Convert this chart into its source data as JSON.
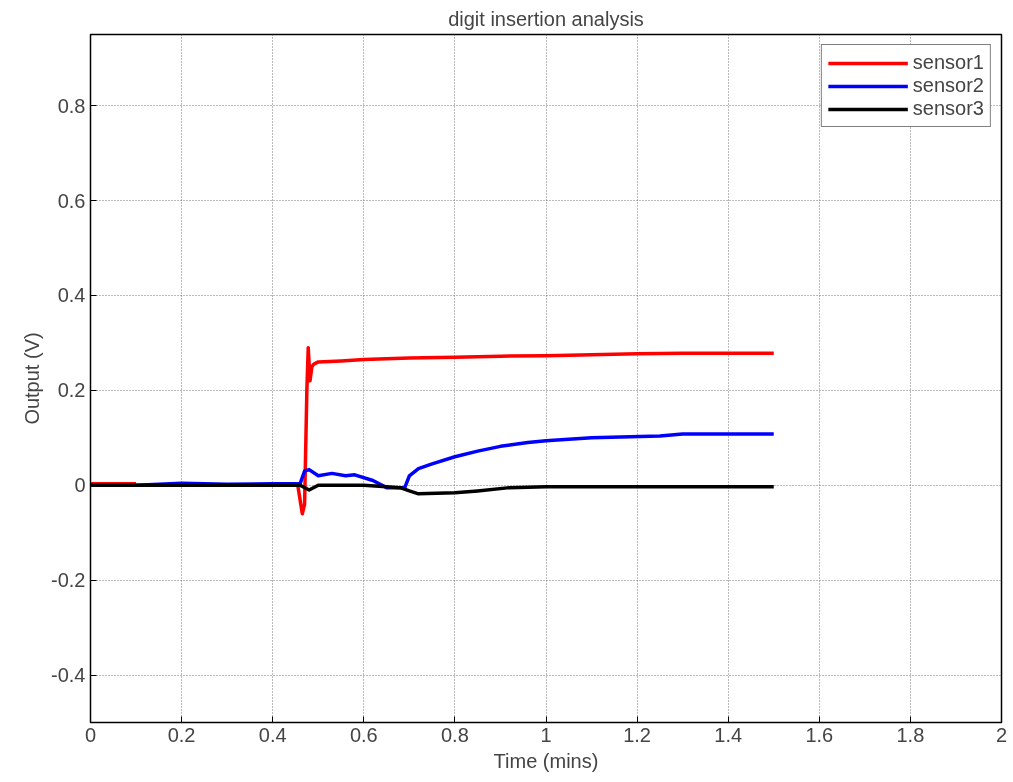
{
  "chart_data": {
    "type": "line",
    "title": "digit insertion analysis",
    "xlabel": "Time (mins)",
    "ylabel": "Output (V)",
    "xlim": [
      0,
      2
    ],
    "xticks": [
      0,
      0.2,
      0.4,
      0.6,
      0.8,
      1,
      1.2,
      1.4,
      1.6,
      1.8,
      2
    ],
    "ylim": [
      -0.5,
      0.95
    ],
    "yticks": [
      -0.4,
      -0.2,
      0,
      0.2,
      0.4,
      0.6,
      0.8
    ],
    "grid": true,
    "legend": "top right",
    "line_style": "solid",
    "series": [
      {
        "name": "sensor1",
        "color": "#ff0000",
        "x": [
          0,
          0.1,
          0.2,
          0.3,
          0.4,
          0.455,
          0.465,
          0.47,
          0.475,
          0.478,
          0.482,
          0.486,
          0.49,
          0.5,
          0.55,
          0.6,
          0.7,
          0.8,
          0.9,
          1.0,
          1.1,
          1.2,
          1.3,
          1.4,
          1.5
        ],
        "values": [
          0.003,
          0.003,
          null,
          null,
          null,
          0.0,
          -0.06,
          -0.04,
          0.2,
          0.29,
          0.22,
          0.25,
          0.255,
          0.26,
          0.262,
          0.265,
          0.268,
          0.27,
          0.272,
          0.273,
          0.275,
          0.277,
          0.278,
          0.278,
          0.278
        ]
      },
      {
        "name": "sensor2",
        "color": "#0000ff",
        "x": [
          0,
          0.1,
          0.2,
          0.3,
          0.4,
          0.46,
          0.47,
          0.48,
          0.5,
          0.53,
          0.56,
          0.58,
          0.62,
          0.65,
          0.69,
          0.7,
          0.72,
          0.75,
          0.8,
          0.85,
          0.9,
          0.96,
          1.0,
          1.1,
          1.25,
          1.3,
          1.5
        ],
        "values": [
          0.0,
          0.0,
          0.004,
          0.002,
          0.003,
          0.003,
          0.03,
          0.033,
          0.02,
          0.025,
          0.02,
          0.022,
          0.01,
          -0.005,
          -0.005,
          0.02,
          0.035,
          0.045,
          0.06,
          0.072,
          0.082,
          0.09,
          0.094,
          0.1,
          0.104,
          0.108,
          0.108
        ]
      },
      {
        "name": "sensor3",
        "color": "#000000",
        "x": [
          0,
          0.1,
          0.2,
          0.3,
          0.4,
          0.46,
          0.48,
          0.5,
          0.6,
          0.65,
          0.68,
          0.7,
          0.72,
          0.8,
          0.85,
          0.92,
          1.0,
          1.2,
          1.5
        ],
        "values": [
          0.0,
          0.0,
          0.0,
          0.0,
          0.0,
          0.0,
          -0.01,
          0.0,
          0.0,
          -0.003,
          -0.005,
          -0.012,
          -0.018,
          -0.016,
          -0.012,
          -0.005,
          -0.003,
          -0.003,
          -0.003
        ]
      }
    ]
  }
}
